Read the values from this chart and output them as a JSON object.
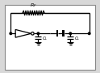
{
  "bg_color": "#ffffff",
  "border_color": "#888888",
  "line_color": "#000000",
  "line_width": 0.9,
  "fig_bg": "#d8d8d8",
  "rf_label": "$R_F$",
  "cl_label": "$C_L$",
  "layout": {
    "xlim": [
      0,
      124
    ],
    "ylim": [
      0,
      90
    ],
    "border": [
      4,
      4,
      120,
      86
    ],
    "ytop": 76,
    "ymid": 50,
    "xleft": 12,
    "xright": 112,
    "xinv_in": 12,
    "xinv_out": 45,
    "xcl1": 47,
    "xcl2": 75,
    "xcl3": 107,
    "xcrys_l": 62,
    "xcrys_r": 88
  }
}
